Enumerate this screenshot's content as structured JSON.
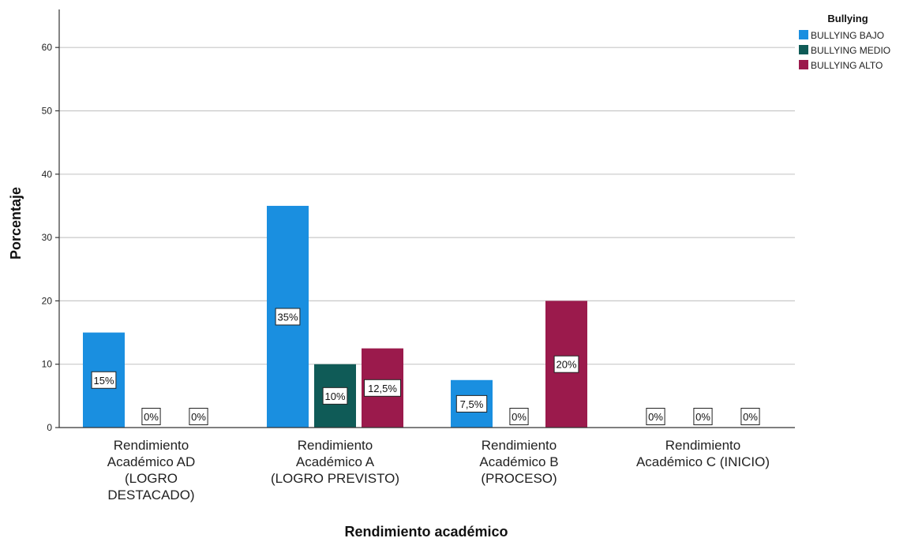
{
  "chart_data": {
    "type": "bar",
    "xlabel": "Rendimiento académico",
    "ylabel": "Porcentaje",
    "ylim": [
      0,
      66
    ],
    "yticks": [
      0,
      10,
      20,
      30,
      40,
      50,
      60
    ],
    "grid": true,
    "legend": {
      "title": "Bullying",
      "position": "top-right"
    },
    "categories": [
      [
        "Rendimiento",
        "Académico AD",
        "(LOGRO",
        "DESTACADO)"
      ],
      [
        "Rendimiento",
        "Académico A",
        "(LOGRO PREVISTO)"
      ],
      [
        "Rendimiento",
        "Académico B",
        "(PROCESO)"
      ],
      [
        "Rendimiento",
        "Académico C (INICIO)"
      ]
    ],
    "series": [
      {
        "name": "BULLYING BAJO",
        "color": "#1a8fe0",
        "values": [
          15,
          35,
          7.5,
          0
        ],
        "labels": [
          "15%",
          "35%",
          "7,5%",
          "0%"
        ]
      },
      {
        "name": "BULLYING MEDIO",
        "color": "#0f5b57",
        "values": [
          0,
          10,
          0,
          0
        ],
        "labels": [
          "0%",
          "10%",
          "0%",
          "0%"
        ]
      },
      {
        "name": "BULLYING ALTO",
        "color": "#9b1a4c",
        "values": [
          0,
          12.5,
          20,
          0
        ],
        "labels": [
          "0%",
          "12,5%",
          "20%",
          "0%"
        ]
      }
    ]
  }
}
